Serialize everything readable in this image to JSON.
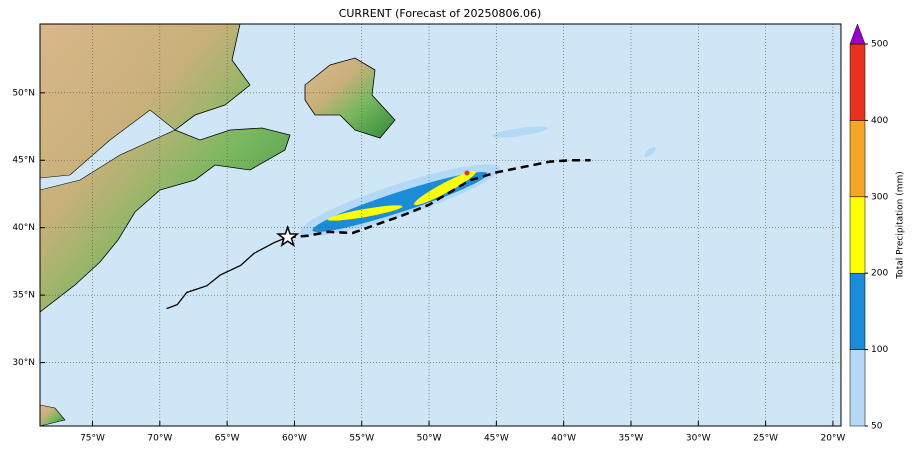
{
  "map": {
    "title": "CURRENT (Forecast of 20250806.06)",
    "xlim": [
      -78.9,
      -19.4
    ],
    "ylim": [
      25.3,
      55.1
    ],
    "xticks": [
      {
        "value": -75,
        "label": "75°W"
      },
      {
        "value": -70,
        "label": "70°W"
      },
      {
        "value": -65,
        "label": "65°W"
      },
      {
        "value": -60,
        "label": "60°W"
      },
      {
        "value": -55,
        "label": "55°W"
      },
      {
        "value": -50,
        "label": "50°W"
      },
      {
        "value": -45,
        "label": "45°W"
      },
      {
        "value": -40,
        "label": "40°W"
      },
      {
        "value": -35,
        "label": "35°W"
      },
      {
        "value": -30,
        "label": "30°W"
      },
      {
        "value": -25,
        "label": "25°W"
      },
      {
        "value": -20,
        "label": "20°W"
      }
    ],
    "yticks": [
      {
        "value": 30,
        "label": "30°N"
      },
      {
        "value": 35,
        "label": "35°N"
      },
      {
        "value": 40,
        "label": "40°N"
      },
      {
        "value": 45,
        "label": "45°N"
      },
      {
        "value": 50,
        "label": "50°N"
      }
    ],
    "grid": true,
    "tracks": [
      {
        "style": "solid",
        "lon": [
          -69.5,
          -68.7,
          -68,
          -66.5,
          -65.5,
          -64,
          -63,
          -61.5,
          -60.5
        ],
        "lat": [
          34,
          34.3,
          35.2,
          35.7,
          36.5,
          37.2,
          38.1,
          38.9,
          39.3
        ]
      },
      {
        "style": "dashed",
        "lon": [
          -60.5,
          -59,
          -57.5,
          -55.7,
          -54,
          -52,
          -50,
          -48.5,
          -47,
          -45,
          -43,
          -41,
          -39.5,
          -38
        ],
        "lat": [
          39.3,
          39.4,
          39.7,
          39.6,
          40.2,
          40.9,
          41.7,
          42.6,
          43.5,
          44.1,
          44.5,
          44.9,
          45,
          45
        ]
      }
    ],
    "current_position": {
      "lon": -60.5,
      "lat": 39.3
    }
  },
  "colorbar": {
    "label": "Total Precipitation (mm)",
    "levels": [
      50,
      100,
      200,
      300,
      400,
      500
    ],
    "colors": [
      "#b3d9f7",
      "#1a8cd8",
      "#ffff00",
      "#f5a623",
      "#e8321e"
    ],
    "extend_color": "#9b00d3"
  }
}
